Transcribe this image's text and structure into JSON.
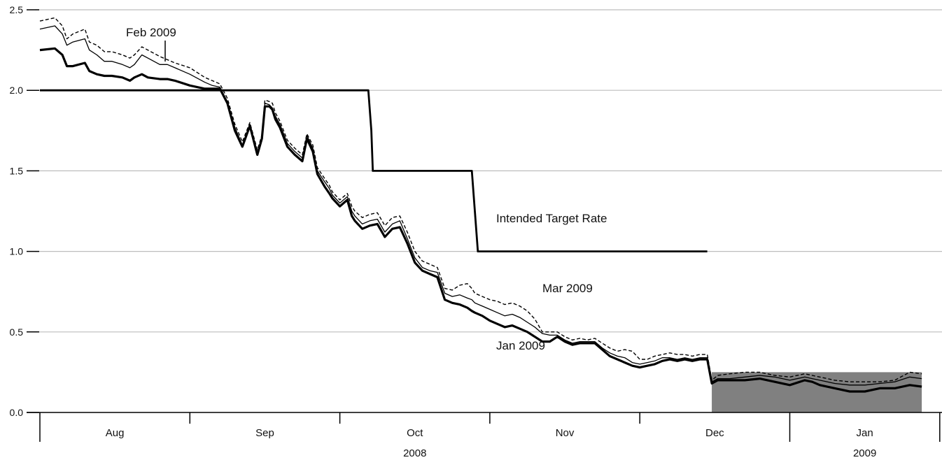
{
  "chart_data": {
    "type": "line",
    "title": "",
    "xlabel": "",
    "ylabel": "",
    "ylim": [
      0,
      2.5
    ],
    "yticks": [
      0.0,
      0.5,
      1.0,
      1.5,
      2.0,
      2.5
    ],
    "ytick_labels": [
      "0.0",
      "0.5",
      "1.0",
      "1.5",
      "2.0",
      "2.5"
    ],
    "grid": "horizontal",
    "x_axis": {
      "months": [
        "Aug",
        "Sep",
        "Oct",
        "Nov",
        "Dec",
        "Jan"
      ],
      "years": [
        {
          "label": "2008",
          "from_month": 0,
          "to_month": 4
        },
        {
          "label": "2009",
          "from_month": 5,
          "to_month": 5
        }
      ],
      "range_months": [
        0,
        5.95
      ]
    },
    "target_range_band": {
      "from": 4.48,
      "to": 5.88,
      "y_low": 0.0,
      "y_high": 0.25,
      "color": "#808080"
    },
    "series": [
      {
        "name": "Intended Target Rate",
        "style": "thick-step",
        "x": [
          0.0,
          2.19,
          2.21,
          2.22,
          2.88,
          2.9,
          2.92,
          4.45
        ],
        "y": [
          2.0,
          2.0,
          1.75,
          1.5,
          1.5,
          1.25,
          1.0,
          1.0
        ]
      },
      {
        "name": "Jan 2009",
        "style": "thick",
        "x": [
          0.0,
          0.1,
          0.15,
          0.18,
          0.22,
          0.3,
          0.33,
          0.38,
          0.43,
          0.48,
          0.55,
          0.6,
          0.63,
          0.68,
          0.72,
          0.8,
          0.85,
          0.9,
          1.0,
          1.1,
          1.15,
          1.2,
          1.25,
          1.3,
          1.35,
          1.4,
          1.45,
          1.48,
          1.5,
          1.53,
          1.55,
          1.57,
          1.6,
          1.65,
          1.7,
          1.75,
          1.78,
          1.82,
          1.85,
          1.9,
          1.93,
          1.95,
          2.0,
          2.05,
          2.08,
          2.1,
          2.15,
          2.2,
          2.25,
          2.3,
          2.35,
          2.4,
          2.45,
          2.5,
          2.55,
          2.6,
          2.65,
          2.7,
          2.75,
          2.8,
          2.85,
          2.88,
          2.9,
          2.95,
          3.0,
          3.05,
          3.1,
          3.15,
          3.2,
          3.25,
          3.3,
          3.35,
          3.4,
          3.45,
          3.5,
          3.55,
          3.6,
          3.65,
          3.7,
          3.75,
          3.8,
          3.85,
          3.9,
          3.95,
          4.0,
          4.05,
          4.1,
          4.15,
          4.2,
          4.25,
          4.3,
          4.35,
          4.4,
          4.45,
          4.48,
          4.52,
          4.6,
          4.7,
          4.8,
          4.9,
          5.0,
          5.1,
          5.15,
          5.2,
          5.3,
          5.4,
          5.5,
          5.6,
          5.7,
          5.8,
          5.88
        ],
        "y": [
          2.25,
          2.26,
          2.22,
          2.15,
          2.15,
          2.17,
          2.12,
          2.1,
          2.09,
          2.09,
          2.08,
          2.06,
          2.08,
          2.1,
          2.08,
          2.07,
          2.07,
          2.06,
          2.03,
          2.01,
          2.01,
          2.01,
          1.92,
          1.75,
          1.65,
          1.78,
          1.6,
          1.7,
          1.9,
          1.9,
          1.88,
          1.82,
          1.77,
          1.65,
          1.6,
          1.56,
          1.7,
          1.62,
          1.48,
          1.4,
          1.36,
          1.33,
          1.28,
          1.32,
          1.22,
          1.19,
          1.14,
          1.16,
          1.17,
          1.09,
          1.14,
          1.15,
          1.05,
          0.93,
          0.88,
          0.86,
          0.84,
          0.7,
          0.68,
          0.67,
          0.65,
          0.63,
          0.62,
          0.6,
          0.57,
          0.55,
          0.53,
          0.54,
          0.52,
          0.5,
          0.47,
          0.44,
          0.44,
          0.47,
          0.44,
          0.42,
          0.43,
          0.43,
          0.43,
          0.39,
          0.35,
          0.33,
          0.31,
          0.29,
          0.28,
          0.29,
          0.3,
          0.32,
          0.33,
          0.32,
          0.33,
          0.32,
          0.33,
          0.33,
          0.18,
          0.2,
          0.2,
          0.2,
          0.21,
          0.19,
          0.17,
          0.2,
          0.19,
          0.17,
          0.15,
          0.13,
          0.13,
          0.15,
          0.15,
          0.17,
          0.16
        ]
      },
      {
        "name": "Feb 2009",
        "style": "thin",
        "x": [
          0.0,
          0.1,
          0.15,
          0.18,
          0.22,
          0.3,
          0.33,
          0.38,
          0.43,
          0.48,
          0.55,
          0.6,
          0.63,
          0.68,
          0.72,
          0.8,
          0.85,
          0.9,
          1.0,
          1.1,
          1.15,
          1.2,
          1.25,
          1.3,
          1.35,
          1.4,
          1.45,
          1.48,
          1.5,
          1.53,
          1.55,
          1.57,
          1.6,
          1.65,
          1.7,
          1.75,
          1.78,
          1.82,
          1.85,
          1.9,
          1.93,
          1.95,
          2.0,
          2.05,
          2.08,
          2.1,
          2.15,
          2.2,
          2.25,
          2.3,
          2.35,
          2.4,
          2.45,
          2.5,
          2.55,
          2.6,
          2.65,
          2.7,
          2.75,
          2.8,
          2.85,
          2.88,
          2.9,
          2.95,
          3.0,
          3.05,
          3.1,
          3.15,
          3.2,
          3.25,
          3.3,
          3.35,
          3.4,
          3.45,
          3.5,
          3.55,
          3.6,
          3.65,
          3.7,
          3.75,
          3.8,
          3.85,
          3.9,
          3.95,
          4.0,
          4.05,
          4.1,
          4.15,
          4.2,
          4.25,
          4.3,
          4.35,
          4.4,
          4.45,
          4.48,
          4.52,
          4.6,
          4.7,
          4.8,
          4.9,
          5.0,
          5.1,
          5.15,
          5.2,
          5.3,
          5.4,
          5.5,
          5.6,
          5.7,
          5.8,
          5.88
        ],
        "y": [
          2.38,
          2.4,
          2.35,
          2.28,
          2.3,
          2.32,
          2.25,
          2.22,
          2.18,
          2.18,
          2.16,
          2.14,
          2.16,
          2.22,
          2.2,
          2.16,
          2.16,
          2.14,
          2.1,
          2.05,
          2.03,
          2.02,
          1.93,
          1.77,
          1.66,
          1.79,
          1.61,
          1.71,
          1.92,
          1.91,
          1.89,
          1.84,
          1.79,
          1.67,
          1.62,
          1.58,
          1.72,
          1.64,
          1.5,
          1.43,
          1.39,
          1.35,
          1.3,
          1.34,
          1.25,
          1.22,
          1.17,
          1.19,
          1.2,
          1.12,
          1.17,
          1.19,
          1.08,
          0.96,
          0.9,
          0.88,
          0.87,
          0.74,
          0.72,
          0.73,
          0.71,
          0.7,
          0.68,
          0.66,
          0.64,
          0.62,
          0.6,
          0.61,
          0.59,
          0.56,
          0.53,
          0.49,
          0.48,
          0.48,
          0.45,
          0.43,
          0.44,
          0.44,
          0.44,
          0.4,
          0.37,
          0.35,
          0.34,
          0.31,
          0.3,
          0.31,
          0.32,
          0.34,
          0.34,
          0.33,
          0.34,
          0.33,
          0.34,
          0.34,
          0.19,
          0.21,
          0.21,
          0.22,
          0.23,
          0.22,
          0.2,
          0.22,
          0.21,
          0.2,
          0.18,
          0.17,
          0.17,
          0.18,
          0.19,
          0.22,
          0.21
        ]
      },
      {
        "name": "Mar 2009",
        "style": "dashed",
        "x": [
          0.0,
          0.1,
          0.15,
          0.18,
          0.22,
          0.3,
          0.33,
          0.38,
          0.43,
          0.48,
          0.55,
          0.6,
          0.63,
          0.68,
          0.72,
          0.8,
          0.85,
          0.9,
          1.0,
          1.1,
          1.15,
          1.2,
          1.25,
          1.3,
          1.35,
          1.4,
          1.45,
          1.48,
          1.5,
          1.53,
          1.55,
          1.57,
          1.6,
          1.65,
          1.7,
          1.75,
          1.78,
          1.82,
          1.85,
          1.9,
          1.93,
          1.95,
          2.0,
          2.05,
          2.08,
          2.1,
          2.15,
          2.2,
          2.25,
          2.3,
          2.35,
          2.4,
          2.45,
          2.5,
          2.55,
          2.6,
          2.65,
          2.7,
          2.75,
          2.8,
          2.85,
          2.88,
          2.9,
          2.95,
          3.0,
          3.05,
          3.1,
          3.15,
          3.2,
          3.25,
          3.3,
          3.35,
          3.4,
          3.45,
          3.5,
          3.55,
          3.6,
          3.65,
          3.7,
          3.75,
          3.8,
          3.85,
          3.9,
          3.95,
          4.0,
          4.05,
          4.1,
          4.15,
          4.2,
          4.25,
          4.3,
          4.35,
          4.4,
          4.45,
          4.48,
          4.52,
          4.6,
          4.7,
          4.8,
          4.9,
          5.0,
          5.1,
          5.15,
          5.2,
          5.3,
          5.4,
          5.5,
          5.6,
          5.7,
          5.8,
          5.88
        ],
        "y": [
          2.43,
          2.45,
          2.4,
          2.32,
          2.35,
          2.38,
          2.3,
          2.28,
          2.24,
          2.24,
          2.22,
          2.2,
          2.22,
          2.27,
          2.25,
          2.21,
          2.19,
          2.17,
          2.14,
          2.08,
          2.06,
          2.04,
          1.95,
          1.79,
          1.68,
          1.8,
          1.63,
          1.72,
          1.94,
          1.93,
          1.92,
          1.86,
          1.81,
          1.69,
          1.64,
          1.6,
          1.73,
          1.66,
          1.52,
          1.45,
          1.41,
          1.37,
          1.32,
          1.36,
          1.28,
          1.25,
          1.21,
          1.23,
          1.24,
          1.16,
          1.21,
          1.22,
          1.12,
          1.0,
          0.94,
          0.92,
          0.9,
          0.77,
          0.76,
          0.79,
          0.8,
          0.77,
          0.74,
          0.72,
          0.7,
          0.69,
          0.67,
          0.68,
          0.66,
          0.63,
          0.58,
          0.5,
          0.5,
          0.5,
          0.47,
          0.45,
          0.46,
          0.45,
          0.46,
          0.43,
          0.4,
          0.38,
          0.39,
          0.38,
          0.33,
          0.33,
          0.35,
          0.36,
          0.37,
          0.36,
          0.36,
          0.35,
          0.36,
          0.36,
          0.2,
          0.23,
          0.24,
          0.25,
          0.25,
          0.23,
          0.22,
          0.24,
          0.23,
          0.22,
          0.2,
          0.19,
          0.19,
          0.19,
          0.2,
          0.25,
          0.24
        ]
      }
    ],
    "annotations": {
      "target": "Intended Target Rate",
      "mar": "Mar 2009",
      "jan": "Jan 2009",
      "feb": "Feb 2009"
    }
  }
}
